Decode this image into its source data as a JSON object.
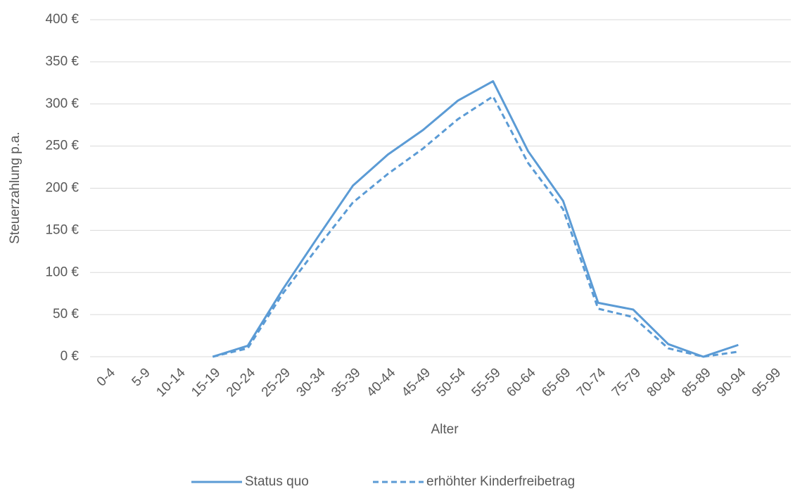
{
  "chart_data": {
    "type": "line",
    "y_label": "Steuerzahlung p.a.",
    "x_label": "Alter",
    "categories": [
      "0-4",
      "5-9",
      "10-14",
      "15-19",
      "20-24",
      "25-29",
      "30-34",
      "35-39",
      "40-44",
      "45-49",
      "50-54",
      "55-59",
      "60-64",
      "65-69",
      "70-74",
      "75-79",
      "80-84",
      "85-89",
      "90-94",
      "95-99"
    ],
    "series": [
      {
        "name": "Status quo",
        "color": "#5b9bd5",
        "dash": false,
        "values": [
          null,
          null,
          null,
          0,
          13,
          80,
          142,
          203,
          240,
          269,
          304,
          327,
          244,
          185,
          64,
          56,
          15,
          0,
          14,
          null
        ]
      },
      {
        "name": "erhöhter Kinderfreibetrag",
        "color": "#5b9bd5",
        "dash": true,
        "values": [
          null,
          null,
          null,
          0,
          10,
          75,
          130,
          183,
          217,
          247,
          282,
          309,
          230,
          175,
          57,
          47,
          10,
          0,
          6,
          null
        ]
      }
    ],
    "ylim": [
      0,
      400
    ],
    "yticks": [
      {
        "value": 0,
        "label": "0 €"
      },
      {
        "value": 50,
        "label": "50 €"
      },
      {
        "value": 100,
        "label": "100 €"
      },
      {
        "value": 150,
        "label": "150 €"
      },
      {
        "value": 200,
        "label": "200 €"
      },
      {
        "value": 250,
        "label": "250 €"
      },
      {
        "value": 300,
        "label": "300 €"
      },
      {
        "value": 350,
        "label": "350 €"
      },
      {
        "value": 400,
        "label": "400 €"
      }
    ],
    "grid": true
  }
}
